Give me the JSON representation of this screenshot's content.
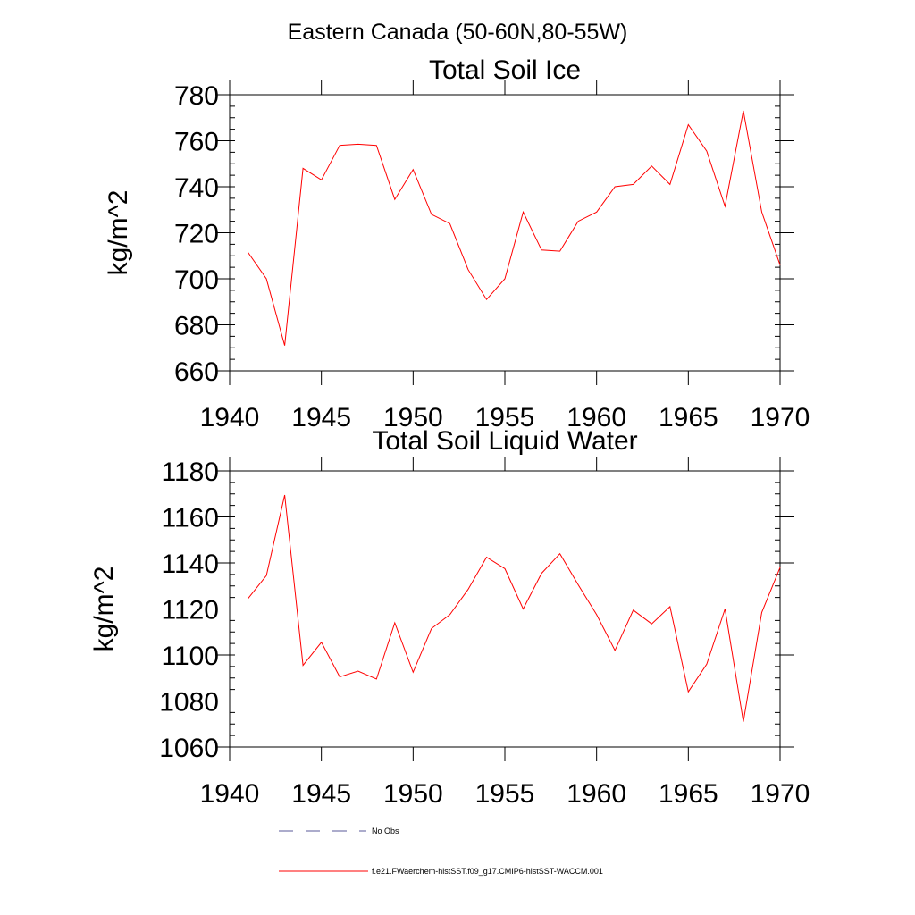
{
  "figure": {
    "title": "Eastern Canada (50-60N,80-55W)"
  },
  "chart_data": [
    {
      "type": "line",
      "title": "Total Soil Ice",
      "xlabel": "",
      "ylabel": "kg/m^2",
      "xlim": [
        1940,
        1970
      ],
      "ylim": [
        660,
        780
      ],
      "xticks": [
        1940,
        1945,
        1950,
        1955,
        1960,
        1965,
        1970
      ],
      "yticks": [
        660,
        680,
        700,
        720,
        740,
        760,
        780
      ],
      "grid": false,
      "x": [
        1941,
        1942,
        1943,
        1944,
        1945,
        1946,
        1947,
        1948,
        1949,
        1950,
        1951,
        1952,
        1953,
        1954,
        1955,
        1956,
        1957,
        1958,
        1959,
        1960,
        1961,
        1962,
        1963,
        1964,
        1965,
        1966,
        1967,
        1968,
        1969,
        1970
      ],
      "series": [
        {
          "name": "f.e21.FWaerchem-histSST.f09_g17.CMIP6-histSST-WACCM.001",
          "color": "#ff0000",
          "values": [
            711.5,
            700,
            671,
            748,
            743,
            758,
            758.5,
            758,
            734.5,
            747.5,
            728,
            724,
            704,
            691,
            700,
            729,
            712.5,
            712,
            725,
            729,
            740,
            741,
            749,
            741,
            767,
            755.5,
            731.5,
            773,
            729,
            706
          ]
        }
      ]
    },
    {
      "type": "line",
      "title": "Total Soil Liquid Water",
      "xlabel": "",
      "ylabel": "kg/m^2",
      "xlim": [
        1940,
        1970
      ],
      "ylim": [
        1060,
        1180
      ],
      "xticks": [
        1940,
        1945,
        1950,
        1955,
        1960,
        1965,
        1970
      ],
      "yticks": [
        1060,
        1080,
        1100,
        1120,
        1140,
        1160,
        1180
      ],
      "grid": false,
      "x": [
        1941,
        1942,
        1943,
        1944,
        1945,
        1946,
        1947,
        1948,
        1949,
        1950,
        1951,
        1952,
        1953,
        1954,
        1955,
        1956,
        1957,
        1958,
        1959,
        1960,
        1961,
        1962,
        1963,
        1964,
        1965,
        1966,
        1967,
        1968,
        1969,
        1970
      ],
      "series": [
        {
          "name": "f.e21.FWaerchem-histSST.f09_g17.CMIP6-histSST-WACCM.001",
          "color": "#ff0000",
          "values": [
            1124.5,
            1134.5,
            1169.5,
            1095.5,
            1105.5,
            1090.5,
            1093,
            1089.5,
            1114,
            1092.5,
            1111.5,
            1117.5,
            1128.5,
            1142.5,
            1137.5,
            1120,
            1135.5,
            1144,
            1130.5,
            1117.5,
            1102,
            1119.5,
            1113.5,
            1121,
            1084,
            1096,
            1120,
            1071,
            1118.5,
            1138
          ]
        }
      ]
    }
  ],
  "legend": {
    "placement": "bottom",
    "items": [
      {
        "label": "No Obs",
        "style": "dashed",
        "color": "#5a5a9a"
      },
      {
        "label": "f.e21.FWaerchem-histSST.f09_g17.CMIP6-histSST-WACCM.001",
        "style": "solid",
        "color": "#ff0000"
      }
    ]
  }
}
